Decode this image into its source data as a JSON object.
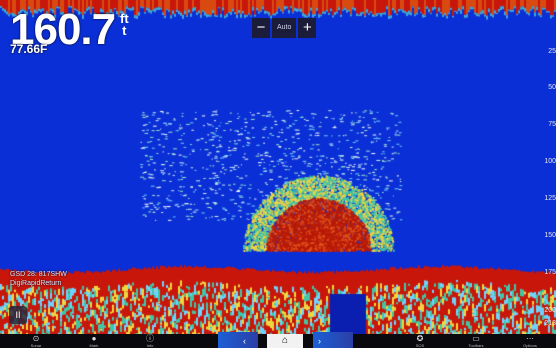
{
  "depth": {
    "value": "160.7",
    "unit_top": "ft",
    "unit_bottom": "t",
    "secondary": "77.66F"
  },
  "range_control": {
    "minus": "−",
    "label": "Auto",
    "plus": "+"
  },
  "scale_labels": [
    "25",
    "50",
    "75",
    "100",
    "125",
    "150",
    "175",
    "200",
    "213"
  ],
  "gps": {
    "line1": "GSD 28: 817SHW",
    "line2": "DigiRapidReturn"
  },
  "pause_label": "II",
  "bottom_bar": {
    "items": [
      {
        "label": "Sonar",
        "icon": "sonar-icon"
      },
      {
        "label": "Mark",
        "icon": "mark-icon"
      },
      {
        "label": "Info",
        "icon": "info-icon"
      },
      {
        "label": "Screens",
        "icon": "screens-icon"
      },
      {
        "label": "SOS",
        "icon": "sos-icon"
      },
      {
        "label": "Toolbars",
        "icon": "toolbars-icon"
      },
      {
        "label": "Options",
        "icon": "options-icon"
      }
    ],
    "home_icon": "home-icon"
  },
  "colors": {
    "water": "#0a2fd6",
    "bottom": "#c8160a",
    "target": "#b81a08"
  }
}
